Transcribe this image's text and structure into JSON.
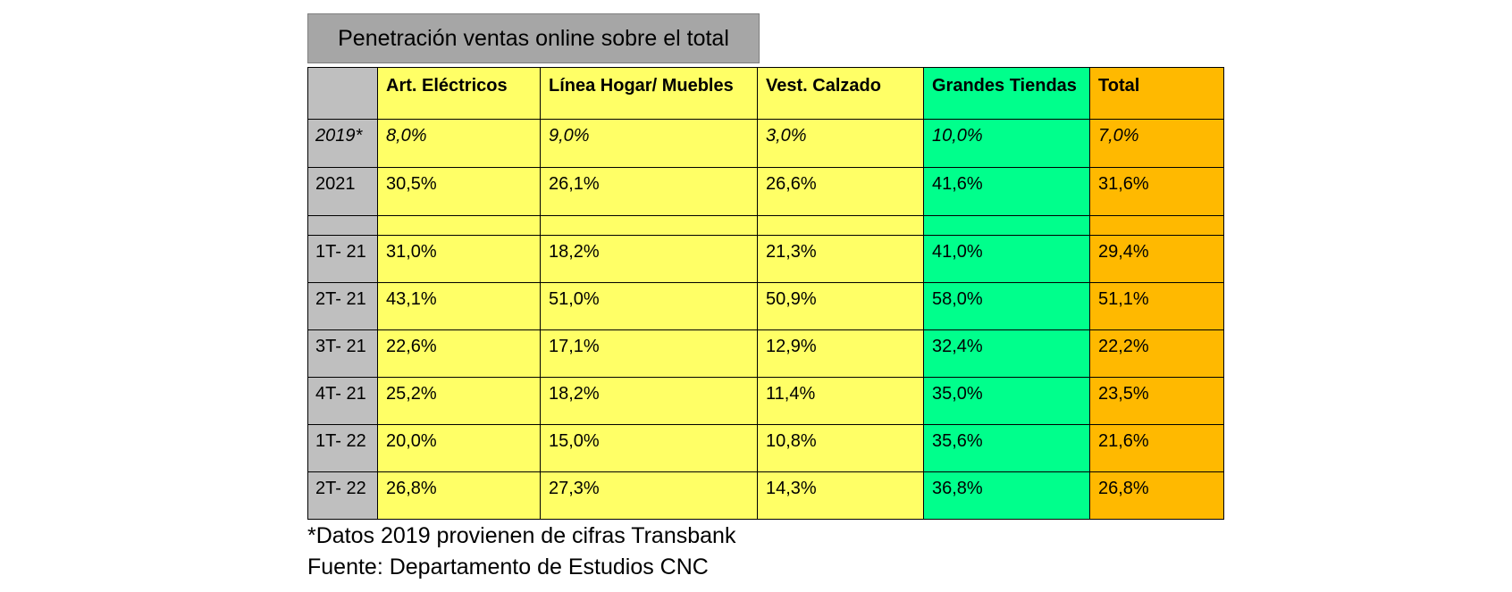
{
  "title": "Penetración ventas online sobre el total",
  "chart_data": {
    "type": "table",
    "columns": [
      "Art. Eléctricos",
      "Línea Hogar/ Muebles",
      "Vest. Calzado",
      "Grandes Tiendas",
      "Total"
    ],
    "rows": [
      {
        "label": "2019*",
        "values": [
          "8,0%",
          "9,0%",
          "3,0%",
          "10,0%",
          "7,0%"
        ]
      },
      {
        "label": "2021",
        "values": [
          "30,5%",
          "26,1%",
          "26,6%",
          "41,6%",
          "31,6%"
        ]
      },
      {
        "label": "",
        "values": [
          "",
          "",
          "",
          "",
          ""
        ]
      },
      {
        "label": "1T- 21",
        "values": [
          "31,0%",
          "18,2%",
          "21,3%",
          "41,0%",
          "29,4%"
        ]
      },
      {
        "label": "2T- 21",
        "values": [
          "43,1%",
          "51,0%",
          "50,9%",
          "58,0%",
          "51,1%"
        ]
      },
      {
        "label": "3T- 21",
        "values": [
          "22,6%",
          "17,1%",
          "12,9%",
          "32,4%",
          "22,2%"
        ]
      },
      {
        "label": "4T- 21",
        "values": [
          "25,2%",
          "18,2%",
          "11,4%",
          "35,0%",
          "23,5%"
        ]
      },
      {
        "label": "1T- 22",
        "values": [
          "20,0%",
          "15,0%",
          "10,8%",
          "35,6%",
          "21,6%"
        ]
      },
      {
        "label": "2T- 22",
        "values": [
          "26,8%",
          "27,3%",
          "14,3%",
          "36,8%",
          "26,8%"
        ]
      }
    ]
  },
  "colors": {
    "row_label_bg": "#bfbfbf",
    "category_bg": "#ffff66",
    "grandes_tiendas_bg": "#00ff8c",
    "total_bg": "#ffb900",
    "title_bg": "#a6a6a6"
  },
  "footnotes": {
    "note": "*Datos 2019 provienen de cifras Transbank",
    "source": "Fuente: Departamento de Estudios CNC"
  }
}
